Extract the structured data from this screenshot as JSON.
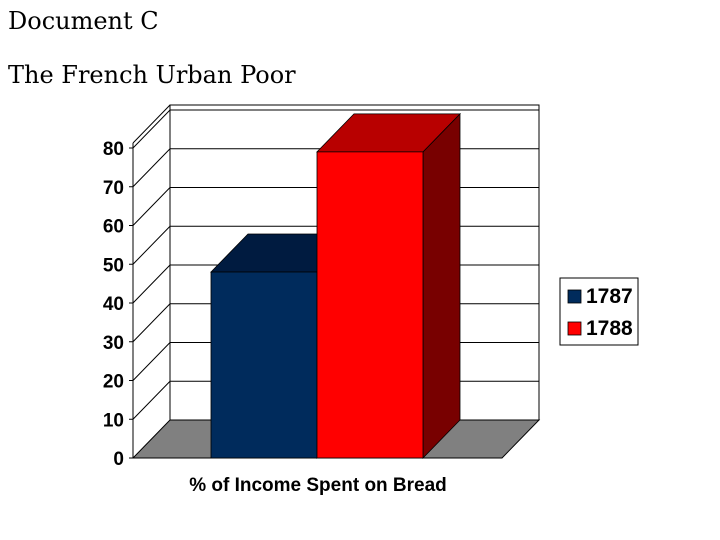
{
  "document": {
    "label": "Document C",
    "title": "The French Urban Poor"
  },
  "chart_data": {
    "type": "bar",
    "style": "3d-clustered",
    "categories": [
      "% of Income Spent on Bread"
    ],
    "series": [
      {
        "name": "1787",
        "values": [
          48
        ],
        "color": "#002B5C",
        "top_color": "#001B40",
        "side_color": "#00163A"
      },
      {
        "name": "1788",
        "values": [
          79
        ],
        "color": "#FF0000",
        "top_color": "#B80000",
        "side_color": "#780000"
      }
    ],
    "xlabel": "% of Income Spent on Bread",
    "ylabel": "",
    "ylim": [
      0,
      80
    ],
    "yticks": [
      0,
      10,
      20,
      30,
      40,
      50,
      60,
      70,
      80
    ],
    "grid": true,
    "legend": "right",
    "floor_color": "#808080"
  }
}
